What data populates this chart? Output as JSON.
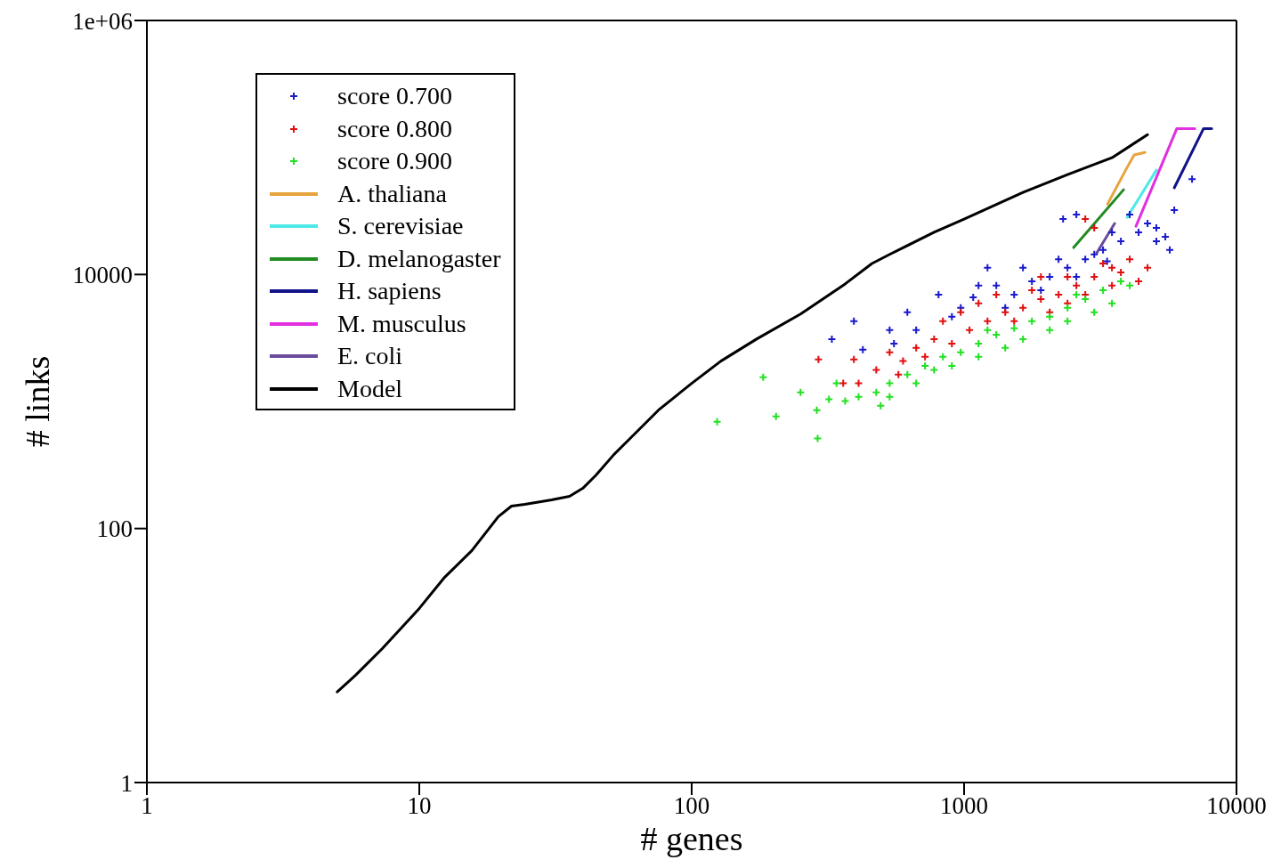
{
  "chart_data": {
    "type": "scatter",
    "xlabel": "# genes",
    "ylabel": "# links",
    "log": "xy",
    "xlim": [
      1,
      10000
    ],
    "ylim": [
      1,
      1000000
    ],
    "xticks": [
      1,
      10,
      100,
      1000,
      10000
    ],
    "yticks": [
      1,
      100,
      10000,
      {
        "value": 1000000,
        "label": "1e+06"
      }
    ],
    "legend": "top left",
    "series": [
      {
        "name": "score 0.700",
        "marker": "cross",
        "color": "#1a1acc",
        "x": [
          327,
          425,
          533,
          553,
          667,
          806,
          902,
          1080,
          1313,
          1527,
          1774,
          2062,
          2397,
          2786,
          3237,
          3763,
          4372,
          5080,
          5910,
          5690,
          5480,
          6870,
          5080,
          3490,
          3005,
          1219,
          1645,
          2223,
          4055,
          2584,
          2309,
          972,
          1416,
          1914,
          4715,
          1130,
          2584,
          3350,
          619,
          394
        ],
        "values": [
          3100,
          2560,
          3650,
          2860,
          3650,
          6950,
          4650,
          6600,
          8170,
          6950,
          8850,
          9590,
          11300,
          13200,
          15600,
          18300,
          21500,
          23300,
          32100,
          15600,
          19800,
          56400,
          18300,
          21500,
          14400,
          11300,
          11300,
          13200,
          29600,
          29600,
          27300,
          5460,
          5460,
          7530,
          25200,
          8170,
          9590,
          12700,
          5040,
          4290
        ]
      },
      {
        "name": "score 0.800",
        "marker": "cross",
        "color": "#e01010",
        "x": [
          292,
          360,
          410,
          476,
          533,
          597,
          667,
          776,
          902,
          1047,
          1219,
          1416,
          1645,
          1914,
          2223,
          2584,
          3005,
          3490,
          4055,
          2786,
          3005,
          4372,
          1130,
          1527,
          2062,
          2786,
          3763,
          1313,
          2397,
          3237,
          836,
          1774,
          394,
          719,
          2397,
          3490,
          972,
          4715,
          574,
          1914
        ],
        "values": [
          2140,
          1390,
          1390,
          1770,
          2440,
          2080,
          2640,
          3100,
          2860,
          3650,
          4290,
          5040,
          5460,
          6410,
          6950,
          8170,
          9590,
          11300,
          13200,
          27300,
          23300,
          8850,
          5920,
          4290,
          5040,
          6950,
          10400,
          6950,
          9590,
          12200,
          4290,
          7530,
          2140,
          2250,
          5920,
          8170,
          5040,
          11300,
          1630,
          9590
        ]
      },
      {
        "name": "score 0.900",
        "marker": "cross",
        "color": "#22e022",
        "x": [
          124,
          183,
          204,
          251,
          288,
          319,
          340,
          290,
          366,
          410,
          476,
          533,
          619,
          719,
          836,
          972,
          1130,
          1313,
          1527,
          1774,
          2062,
          2397,
          2786,
          3237,
          3763,
          533,
          776,
          1130,
          1645,
          2397,
          3490,
          667,
          902,
          1416,
          2062,
          3005,
          4055,
          494,
          1219,
          2584
        ],
        "values": [
          693,
          1550,
          764,
          1180,
          855,
          1040,
          1390,
          511,
          1010,
          1090,
          1180,
          1390,
          1630,
          1910,
          2250,
          2440,
          2860,
          3360,
          3770,
          4290,
          4650,
          5460,
          6410,
          7530,
          8850,
          1090,
          1770,
          2250,
          3100,
          4290,
          5920,
          1390,
          1910,
          2640,
          3650,
          5040,
          8170,
          927,
          3650,
          6950
        ]
      },
      {
        "name": "A. thaliana",
        "type": "line",
        "color": "#e8a33c",
        "x": [
          3363,
          3966,
          4211,
          4610
        ],
        "values": [
          35900,
          69600,
          87300,
          91500
        ]
      },
      {
        "name": "S. cerevisiae",
        "type": "line",
        "color": "#4ee8e8",
        "x": [
          3966,
          5080
        ],
        "values": [
          28200,
          66300
        ]
      },
      {
        "name": "D. melanogaster",
        "type": "line",
        "color": "#228b22",
        "x": [
          2525,
          3850
        ],
        "values": [
          16300,
          46500
        ]
      },
      {
        "name": "H. sapiens",
        "type": "line",
        "color": "#12128a",
        "x": [
          5910,
          7570,
          8110
        ],
        "values": [
          48100,
          141000,
          141000
        ]
      },
      {
        "name": "M. musculus",
        "type": "line",
        "color": "#e030e0",
        "x": [
          4276,
          6040,
          7030
        ],
        "values": [
          24000,
          141000,
          141000
        ]
      },
      {
        "name": "E. coli",
        "type": "line",
        "color": "#6b4c9a",
        "x": [
          3070,
          3570
        ],
        "values": [
          14800,
          25200
        ]
      },
      {
        "name": "Model",
        "type": "line",
        "color": "#000000",
        "x": [
          5,
          5.85,
          7.33,
          10,
          12.4,
          15.6,
          19.5,
          21.8,
          24.4,
          30.6,
          35.6,
          39.8,
          44.6,
          51.8,
          60.2,
          75.5,
          100,
          128,
          173,
          251,
          366,
          459,
          533,
          776,
          1000,
          1645,
          2397,
          3490,
          4715
        ],
        "values": [
          5.17,
          7.03,
          11.4,
          23.5,
          41.4,
          67.1,
          124,
          150,
          155,
          168,
          179,
          207,
          264,
          382,
          527,
          855,
          1390,
          2080,
          3100,
          4880,
          8430,
          12200,
          14400,
          21500,
          27300,
          44300,
          61200,
          83100,
          126000
        ]
      }
    ]
  }
}
